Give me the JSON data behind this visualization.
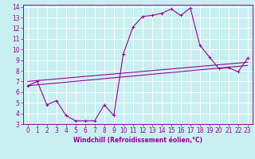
{
  "background_color": "#c8f0f0",
  "grid_color": "#ffffff",
  "line_color": "#990099",
  "xlabel": "Windchill (Refroidissement éolien,°C)",
  "xlim": [
    -0.5,
    23.5
  ],
  "ylim": [
    3,
    14.2
  ],
  "xticks": [
    0,
    1,
    2,
    3,
    4,
    5,
    6,
    7,
    8,
    9,
    10,
    11,
    12,
    13,
    14,
    15,
    16,
    17,
    18,
    19,
    20,
    21,
    22,
    23
  ],
  "yticks": [
    3,
    4,
    5,
    6,
    7,
    8,
    9,
    10,
    11,
    12,
    13,
    14
  ],
  "line1_x": [
    0,
    1,
    2,
    3,
    4,
    5,
    6,
    7,
    8,
    9,
    10,
    11,
    12,
    13,
    14,
    15,
    16,
    17,
    18,
    19,
    20,
    21,
    22,
    23
  ],
  "line1_y": [
    6.6,
    7.0,
    4.8,
    5.2,
    3.8,
    3.3,
    3.3,
    3.3,
    4.8,
    3.8,
    9.6,
    12.1,
    13.1,
    13.2,
    13.4,
    13.8,
    13.2,
    13.9,
    10.4,
    9.3,
    8.2,
    8.3,
    7.9,
    9.2
  ],
  "line2_x": [
    0,
    23
  ],
  "line2_y": [
    6.6,
    8.5
  ],
  "line3_x": [
    0,
    23
  ],
  "line3_y": [
    7.0,
    8.8
  ],
  "marker_size": 2.5,
  "linewidth": 0.8,
  "tick_fontsize": 5.5,
  "xlabel_fontsize": 5.5
}
